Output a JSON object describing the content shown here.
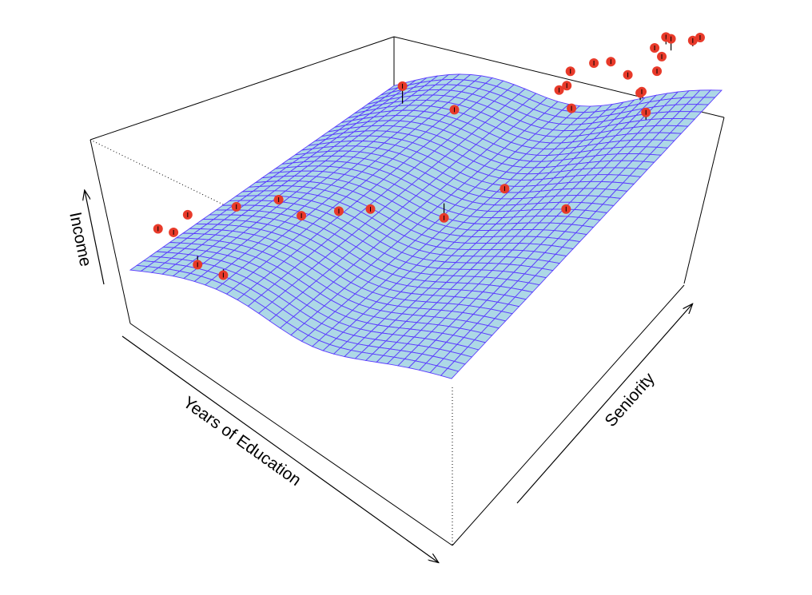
{
  "chart_data": {
    "type": "scatter",
    "subtype": "3d-surface-with-points",
    "title": "",
    "xlabel": "Years of Education",
    "ylabel": "Seniority",
    "zlabel": "Income",
    "grid": false,
    "legend": "none",
    "surface_grid": [
      30,
      40
    ],
    "colors": {
      "surface_fill": "#add8e6",
      "surface_mesh": "#5b3bff",
      "points": "#e83a2a",
      "residual_segments": "#000000",
      "box": "#000000"
    },
    "series": [
      {
        "name": "",
        "points": [
          {
            "x": 0.07,
            "y": 0.02,
            "z": 0.66,
            "z_fit": 0.63
          },
          {
            "x": 0.11,
            "y": 0.03,
            "z": 0.64,
            "z_fit": 0.63
          },
          {
            "x": 0.16,
            "y": 0.06,
            "z": 0.4,
            "z_fit": 0.46
          },
          {
            "x": 0.24,
            "y": 0.06,
            "z": 0.36,
            "z_fit": 0.4
          },
          {
            "x": 0.08,
            "y": 0.12,
            "z": 0.64,
            "z_fit": 0.64
          },
          {
            "x": 0.19,
            "y": 0.17,
            "z": 0.67,
            "z_fit": 0.67
          },
          {
            "x": 0.28,
            "y": 0.22,
            "z": 0.68,
            "z_fit": 0.68
          },
          {
            "x": 0.4,
            "y": 0.16,
            "z": 0.69,
            "z_fit": 0.69
          },
          {
            "x": 0.45,
            "y": 0.24,
            "z": 0.62,
            "z_fit": 0.62
          },
          {
            "x": 0.49,
            "y": 0.31,
            "z": 0.54,
            "z_fit": 0.56
          },
          {
            "x": 0.61,
            "y": 0.44,
            "z": 0.3,
            "z_fit": 0.4
          },
          {
            "x": 0.64,
            "y": 0.63,
            "z": 0.2,
            "z_fit": 0.2
          },
          {
            "x": 0.61,
            "y": 0.87,
            "z": 0.5,
            "z_fit": 0.5
          },
          {
            "x": 0.22,
            "y": 0.76,
            "z": 0.74,
            "z_fit": 0.62
          },
          {
            "x": 0.42,
            "y": 0.71,
            "z": 0.63,
            "z_fit": 0.63
          },
          {
            "x": 0.56,
            "y": 0.96,
            "z": 0.4,
            "z_fit": 0.38
          },
          {
            "x": 0.62,
            "y": 0.9,
            "z": 0.58,
            "z_fit": 0.58
          },
          {
            "x": 0.61,
            "y": 1.0,
            "z": 0.48,
            "z_fit": 0.47
          },
          {
            "x": 0.73,
            "y": 0.77,
            "z": 0.52,
            "z_fit": 0.52
          },
          {
            "x": 0.85,
            "y": 0.88,
            "z": 0.42,
            "z_fit": 0.37
          },
          {
            "x": 0.83,
            "y": 0.91,
            "z": 0.38,
            "z_fit": 0.36
          },
          {
            "x": 0.97,
            "y": 0.46,
            "z": 0.37,
            "z_fit": 0.37
          },
          {
            "x": 0.67,
            "y": 0.99,
            "z": 0.49,
            "z_fit": 0.49
          },
          {
            "x": 0.73,
            "y": 0.98,
            "z": 0.4,
            "z_fit": 0.4
          },
          {
            "x": 0.95,
            "y": 0.78,
            "z": 0.45,
            "z_fit": 0.4
          },
          {
            "x": 0.85,
            "y": 0.96,
            "z": 0.53,
            "z_fit": 0.53
          },
          {
            "x": 0.82,
            "y": 0.97,
            "z": 0.58,
            "z_fit": 0.58
          },
          {
            "x": 0.86,
            "y": 0.93,
            "z": 0.48,
            "z_fit": 0.45
          },
          {
            "x": 0.83,
            "y": 1.0,
            "z": 0.6,
            "z_fit": 0.55
          },
          {
            "x": 0.92,
            "y": 0.99,
            "z": 0.57,
            "z_fit": 0.53
          },
          {
            "x": 0.87,
            "y": 0.97,
            "z": 0.63,
            "z_fit": 0.55
          },
          {
            "x": 1.0,
            "y": 0.92,
            "z": 0.7,
            "z_fit": 0.69
          }
        ]
      }
    ]
  }
}
